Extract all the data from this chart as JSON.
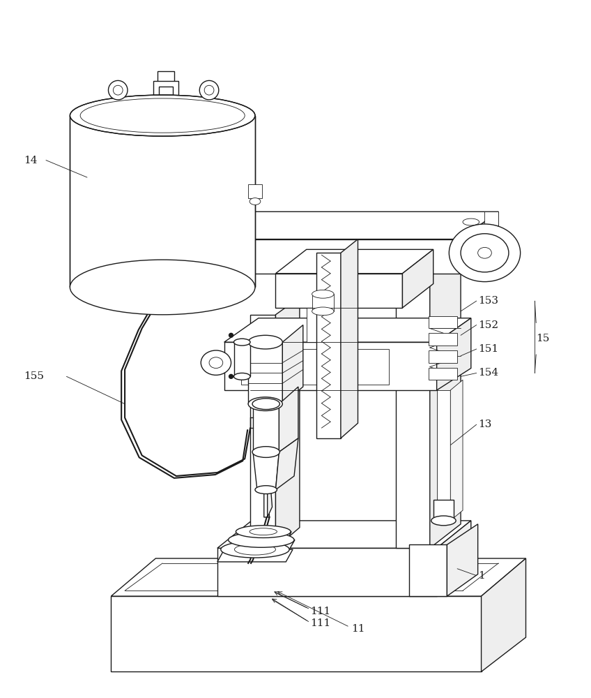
{
  "bg": "#ffffff",
  "lc": "#1a1a1a",
  "lw": 1.0,
  "lw_thick": 1.5,
  "lw_thin": 0.6,
  "fs": 11,
  "fig_w": 8.48,
  "fig_h": 10.0
}
